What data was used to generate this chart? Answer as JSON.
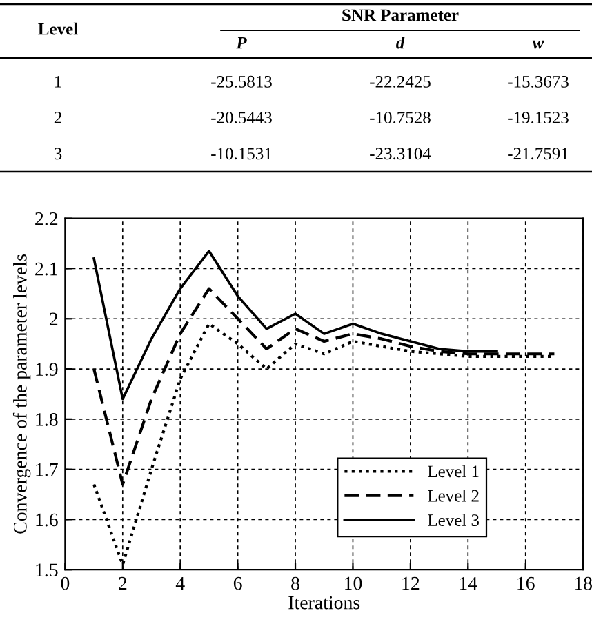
{
  "chart_data": [
    {
      "type": "other",
      "annotations": [
        "Level",
        "SNR Parameter",
        "P",
        "d",
        "w",
        "1",
        "-25.5813",
        "-22.2425",
        "-15.3673",
        "2",
        "-20.5443",
        "-10.7528",
        "-19.1523",
        "3",
        "-10.1531",
        "-23.3104",
        "-21.7591"
      ]
    },
    {
      "type": "line",
      "xlabel": "Iterations",
      "ylabel": "Convergence of the parameter levels",
      "xlim": [
        0,
        18
      ],
      "xticks": [
        0,
        2,
        4,
        6,
        8,
        10,
        12,
        14,
        16,
        18
      ],
      "ylim": [
        1.5,
        2.2
      ],
      "yticks": [
        1.5,
        1.6,
        1.7,
        1.8,
        1.9,
        2,
        2.1,
        2.2
      ],
      "grid": true,
      "legend": "bottom right",
      "marker": "none",
      "series": [
        {
          "name": "Level 1",
          "color": "#000000",
          "line_style": "dotted",
          "x": [
            1,
            2,
            3,
            4,
            5,
            6,
            7,
            8,
            9,
            10,
            11,
            12,
            13,
            14,
            15,
            16,
            17
          ],
          "values": [
            1.67,
            1.51,
            1.7,
            1.88,
            1.99,
            1.95,
            1.9,
            1.95,
            1.93,
            1.955,
            1.945,
            1.935,
            1.93,
            1.925,
            1.925,
            1.925,
            1.925
          ]
        },
        {
          "name": "Level 2",
          "color": "#000000",
          "line_style": "dashed",
          "x": [
            1,
            2,
            3,
            4,
            5,
            6,
            7,
            8,
            9,
            10,
            11,
            12,
            13,
            14,
            15,
            16,
            17
          ],
          "values": [
            1.9,
            1.67,
            1.84,
            1.97,
            2.06,
            2.0,
            1.94,
            1.98,
            1.955,
            1.97,
            1.96,
            1.945,
            1.935,
            1.93,
            1.93,
            1.93,
            1.93
          ]
        },
        {
          "name": "Level 3",
          "color": "#000000",
          "line_style": "solid",
          "x": [
            1,
            2,
            3,
            4,
            5,
            6,
            7,
            8,
            9,
            10,
            11,
            12,
            13,
            14,
            15
          ],
          "values": [
            2.12,
            1.84,
            1.96,
            2.06,
            2.135,
            2.045,
            1.98,
            2.01,
            1.97,
            1.99,
            1.97,
            1.955,
            1.94,
            1.935,
            1.935
          ]
        }
      ]
    }
  ]
}
